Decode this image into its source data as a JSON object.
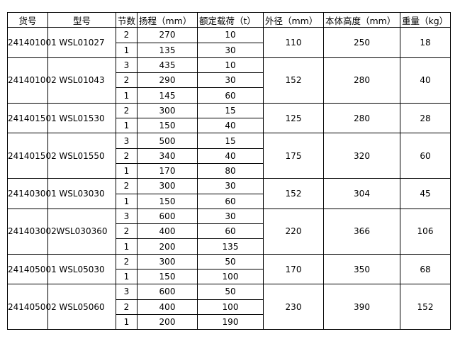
{
  "headers": [
    "货号",
    "型号",
    "节数",
    "扬程（mm）",
    "额定载荷（t）",
    "外径（mm）",
    "本体高度（mm）",
    "重量（kg）"
  ],
  "products": [
    {
      "sku": "241401001",
      "model": "WSL01027",
      "od": "110",
      "height": "250",
      "weight": "18",
      "stages": [
        [
          "2",
          "270",
          "10"
        ],
        [
          "1",
          "135",
          "30"
        ]
      ]
    },
    {
      "sku": "241401002",
      "model": "WSL01043",
      "od": "152",
      "height": "280",
      "weight": "40",
      "stages": [
        [
          "3",
          "435",
          "10"
        ],
        [
          "2",
          "290",
          "30"
        ],
        [
          "1",
          "145",
          "60"
        ]
      ]
    },
    {
      "sku": "241401501",
      "model": "WSL01530",
      "od": "125",
      "height": "280",
      "weight": "28",
      "stages": [
        [
          "2",
          "300",
          "15"
        ],
        [
          "1",
          "150",
          "40"
        ]
      ]
    },
    {
      "sku": "241401502",
      "model": "WSL01550",
      "od": "175",
      "height": "320",
      "weight": "60",
      "stages": [
        [
          "3",
          "500",
          "15"
        ],
        [
          "2",
          "340",
          "40"
        ],
        [
          "1",
          "170",
          "80"
        ]
      ]
    },
    {
      "sku": "241403001",
      "model": "WSL03030",
      "od": "152",
      "height": "304",
      "weight": "45",
      "stages": [
        [
          "2",
          "300",
          "30"
        ],
        [
          "1",
          "150",
          "60"
        ]
      ]
    },
    {
      "sku": "241403002",
      "model": "WSL030360",
      "od": "220",
      "height": "366",
      "weight": "106",
      "stages": [
        [
          "3",
          "600",
          "30"
        ],
        [
          "2",
          "400",
          "60"
        ],
        [
          "1",
          "200",
          "135"
        ]
      ]
    },
    {
      "sku": "241405001",
      "model": "WSL05030",
      "od": "170",
      "height": "350",
      "weight": "68",
      "stages": [
        [
          "2",
          "300",
          "50"
        ],
        [
          "1",
          "150",
          "100"
        ]
      ]
    },
    {
      "sku": "241405002",
      "model": "WSL05060",
      "od": "230",
      "height": "390",
      "weight": "152",
      "stages": [
        [
          "3",
          "600",
          "50"
        ],
        [
          "2",
          "400",
          "100"
        ],
        [
          "1",
          "200",
          "190"
        ]
      ]
    }
  ]
}
